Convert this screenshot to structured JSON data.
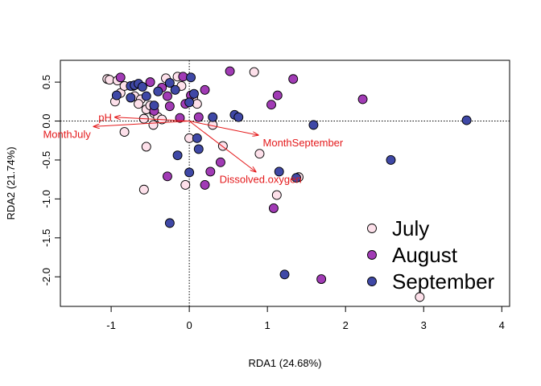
{
  "chart_data": {
    "type": "scatter",
    "title": "",
    "xlabel": "RDA1 (24.68%)",
    "ylabel": "RDA2 (21.74%)",
    "xlim": [
      -1.65,
      4.1
    ],
    "ylim": [
      -2.38,
      0.78
    ],
    "x_ticks": [
      -1,
      0,
      1,
      2,
      3,
      4
    ],
    "y_ticks": [
      -2.0,
      -1.5,
      -1.0,
      -0.5,
      0.0,
      0.5
    ],
    "reference_lines": {
      "x": 0,
      "y": 0,
      "style": "dotted"
    },
    "legend_position": "bottom-right",
    "series": [
      {
        "name": "July",
        "color": "#fde0ea",
        "stroke": "#000000",
        "points": [
          [
            -1.05,
            0.54
          ],
          [
            -1.02,
            0.53
          ],
          [
            -0.92,
            0.52
          ],
          [
            -0.88,
            0.36
          ],
          [
            -0.95,
            0.25
          ],
          [
            -0.83,
            0.45
          ],
          [
            -0.72,
            0.45
          ],
          [
            -0.7,
            0.32
          ],
          [
            -0.62,
            0.28
          ],
          [
            -0.55,
            0.15
          ],
          [
            -0.5,
            0.2
          ],
          [
            -0.45,
            0.1
          ],
          [
            -0.4,
            0.05
          ],
          [
            -0.35,
            0.02
          ],
          [
            -0.46,
            -0.05
          ],
          [
            -0.58,
            0.03
          ],
          [
            -0.65,
            0.22
          ],
          [
            -0.55,
            -0.33
          ],
          [
            -0.3,
            0.55
          ],
          [
            -0.15,
            0.57
          ],
          [
            -0.1,
            0.45
          ],
          [
            0.05,
            0.3
          ],
          [
            0.1,
            0.22
          ],
          [
            0.3,
            -0.05
          ],
          [
            0.0,
            -0.22
          ],
          [
            0.43,
            -0.32
          ],
          [
            0.83,
            0.63
          ],
          [
            0.9,
            -0.42
          ],
          [
            1.12,
            -0.95
          ],
          [
            1.4,
            -0.72
          ],
          [
            -0.05,
            -0.82
          ],
          [
            -0.58,
            -0.88
          ],
          [
            -0.83,
            -0.14
          ],
          [
            2.95,
            -2.26
          ]
        ]
      },
      {
        "name": "August",
        "color": "#a13bb5",
        "stroke": "#000000",
        "points": [
          [
            -0.88,
            0.56
          ],
          [
            -0.5,
            0.5
          ],
          [
            -0.35,
            0.43
          ],
          [
            -0.28,
            0.32
          ],
          [
            -0.25,
            0.19
          ],
          [
            -0.05,
            0.22
          ],
          [
            -0.08,
            0.57
          ],
          [
            0.02,
            0.33
          ],
          [
            0.2,
            0.4
          ],
          [
            0.52,
            0.64
          ],
          [
            -0.45,
            0.13
          ],
          [
            -0.12,
            0.04
          ],
          [
            0.12,
            0.05
          ],
          [
            1.05,
            0.21
          ],
          [
            1.13,
            0.33
          ],
          [
            1.33,
            0.54
          ],
          [
            2.22,
            0.28
          ],
          [
            0.4,
            -0.53
          ],
          [
            0.27,
            -0.65
          ],
          [
            -0.28,
            -0.71
          ],
          [
            0.2,
            -0.82
          ],
          [
            1.08,
            -1.12
          ],
          [
            1.69,
            -2.03
          ]
        ]
      },
      {
        "name": "September",
        "color": "#3f48a6",
        "stroke": "#000000",
        "points": [
          [
            -0.93,
            0.33
          ],
          [
            -0.75,
            0.45
          ],
          [
            -0.7,
            0.46
          ],
          [
            -0.65,
            0.48
          ],
          [
            -0.6,
            0.44
          ],
          [
            -0.75,
            0.3
          ],
          [
            -0.55,
            0.32
          ],
          [
            -0.4,
            0.38
          ],
          [
            -0.45,
            0.2
          ],
          [
            -0.25,
            0.49
          ],
          [
            -0.18,
            0.4
          ],
          [
            0.02,
            0.56
          ],
          [
            0.0,
            0.24
          ],
          [
            0.06,
            0.35
          ],
          [
            0.3,
            0.05
          ],
          [
            0.58,
            0.08
          ],
          [
            0.63,
            0.05
          ],
          [
            -0.15,
            -0.44
          ],
          [
            0.1,
            -0.22
          ],
          [
            0.12,
            -0.36
          ],
          [
            0.0,
            -0.66
          ],
          [
            -0.25,
            -1.31
          ],
          [
            1.15,
            -0.65
          ],
          [
            1.37,
            -0.73
          ],
          [
            1.59,
            -0.05
          ],
          [
            2.58,
            -0.5
          ],
          [
            1.22,
            -1.97
          ],
          [
            3.55,
            0.01
          ]
        ]
      }
    ],
    "arrows": [
      {
        "label": "pH",
        "x": -0.95,
        "y": 0.05
      },
      {
        "label": "MonthJuly",
        "x": -1.22,
        "y": -0.07
      },
      {
        "label": "MonthSeptember",
        "x": 0.88,
        "y": -0.18
      },
      {
        "label": "Dissolved.oxygen",
        "x": 0.85,
        "y": -0.65
      }
    ],
    "arrow_color": "#e41a1c"
  }
}
